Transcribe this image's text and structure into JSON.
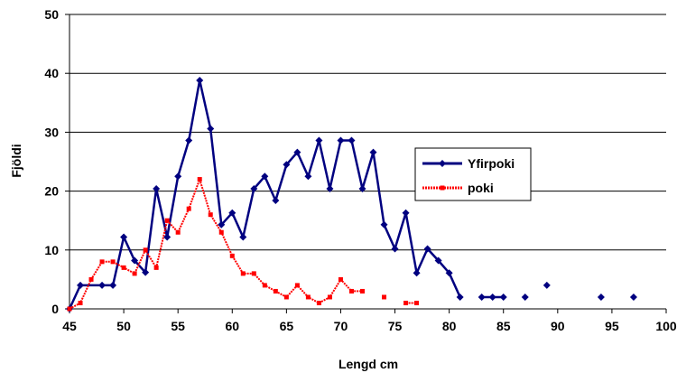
{
  "chart_data": {
    "type": "line",
    "xlabel": "Lengd cm",
    "ylabel": "Fjöldi",
    "xlim": [
      45,
      100
    ],
    "ylim": [
      0,
      50
    ],
    "xticks": [
      45,
      50,
      55,
      60,
      65,
      70,
      75,
      80,
      85,
      90,
      95,
      100
    ],
    "yticks": [
      0,
      10,
      20,
      30,
      40,
      50
    ],
    "grid": "horizontal",
    "legend": "right",
    "series": [
      {
        "name": "Yfirpoki",
        "color": "#000080",
        "marker": "diamond",
        "points": [
          [
            45,
            0
          ],
          [
            46,
            4
          ],
          [
            48,
            4
          ],
          [
            49,
            4
          ],
          [
            50,
            12.2
          ],
          [
            51,
            8.2
          ],
          [
            52,
            6.2
          ],
          [
            53,
            20.4
          ],
          [
            54,
            12.2
          ],
          [
            55,
            22.5
          ],
          [
            56,
            28.6
          ],
          [
            57,
            38.8
          ],
          [
            58,
            30.6
          ],
          [
            59,
            14.3
          ],
          [
            60,
            16.3
          ],
          [
            61,
            12.2
          ],
          [
            62,
            20.4
          ],
          [
            63,
            22.5
          ],
          [
            64,
            18.4
          ],
          [
            65,
            24.5
          ],
          [
            66,
            26.6
          ],
          [
            67,
            22.5
          ],
          [
            68,
            28.6
          ],
          [
            69,
            20.4
          ],
          [
            70,
            28.6
          ],
          [
            71,
            28.6
          ],
          [
            72,
            20.4
          ],
          [
            73,
            26.6
          ],
          [
            74,
            14.3
          ],
          [
            75,
            10.2
          ],
          [
            76,
            16.3
          ],
          [
            77,
            6.1
          ],
          [
            78,
            10.2
          ],
          [
            79,
            8.2
          ],
          [
            80,
            6.1
          ],
          [
            81,
            2
          ],
          null,
          [
            83,
            2
          ],
          [
            84,
            2
          ],
          [
            85,
            2
          ],
          null,
          [
            87,
            2
          ],
          null,
          [
            89,
            4
          ],
          null,
          [
            94,
            2
          ],
          null,
          [
            97,
            2
          ]
        ]
      },
      {
        "name": "poki",
        "color": "#ff0000",
        "marker": "square",
        "points": [
          [
            45,
            0
          ],
          [
            46,
            1
          ],
          [
            47,
            5
          ],
          [
            48,
            8
          ],
          [
            49,
            8
          ],
          [
            50,
            7
          ],
          [
            51,
            6
          ],
          [
            52,
            10
          ],
          [
            53,
            7
          ],
          [
            54,
            15
          ],
          [
            55,
            13
          ],
          [
            56,
            17
          ],
          [
            57,
            22
          ],
          [
            58,
            16
          ],
          [
            59,
            13
          ],
          [
            60,
            9
          ],
          [
            61,
            6
          ],
          [
            62,
            6
          ],
          [
            63,
            4
          ],
          [
            64,
            3
          ],
          [
            65,
            2
          ],
          [
            66,
            4
          ],
          [
            67,
            2
          ],
          [
            68,
            1
          ],
          [
            69,
            2
          ],
          [
            70,
            5
          ],
          [
            71,
            3
          ],
          [
            72,
            3
          ],
          null,
          [
            74,
            2
          ],
          null,
          [
            76,
            1
          ],
          [
            77,
            1
          ]
        ]
      }
    ]
  }
}
